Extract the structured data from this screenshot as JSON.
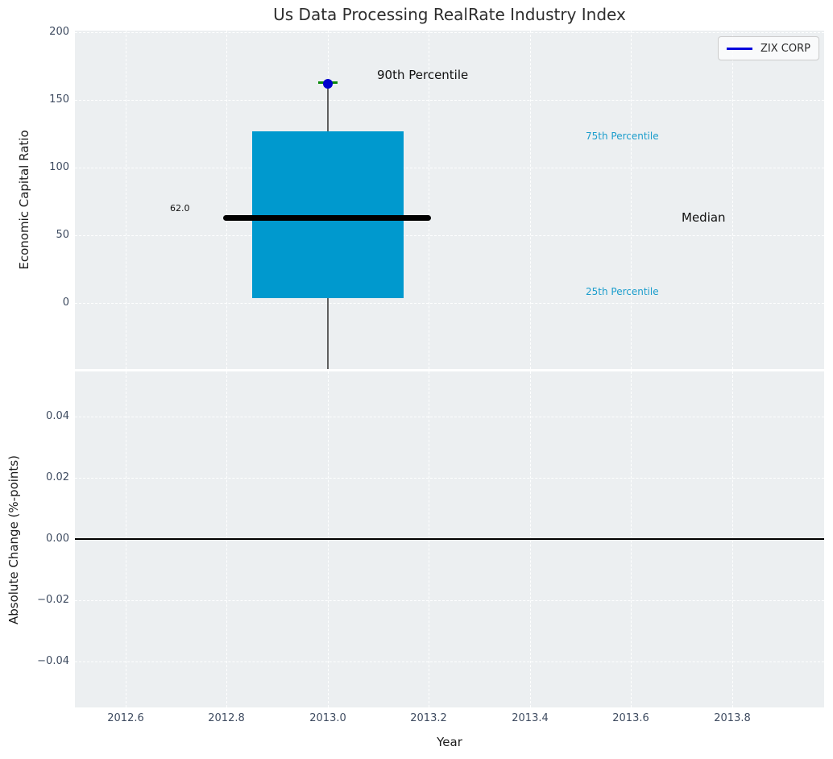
{
  "title": "Us Data Processing RealRate Industry Index",
  "legend": {
    "label": "ZIX CORP",
    "line_color": "#0000dd"
  },
  "top_axes": {
    "ylabel": "Economic Capital Ratio",
    "yticks": [
      "200",
      "150",
      "100",
      "50",
      "0"
    ],
    "annotations": {
      "p90_label": "90th Percentile",
      "p75_label": "75th Percentile",
      "median_label": "Median",
      "p25_label": "25th Percentile",
      "median_value_label": "62.0"
    }
  },
  "bottom_axes": {
    "ylabel": "Absolute Change (%-points)",
    "yticks": [
      "0.04",
      "0.02",
      "0.00",
      "−0.02",
      "−0.04"
    ]
  },
  "xaxis": {
    "label": "Year",
    "ticks": [
      "2012.6",
      "2012.8",
      "2013.0",
      "2013.2",
      "2013.4",
      "2013.6",
      "2013.8"
    ]
  },
  "colors": {
    "plot_background": "#eceff1",
    "grid": "#ffffff",
    "box_fill": "#0099ce",
    "median_line": "#000000",
    "whisker_line": "#5f5f5f",
    "whisker_cap": "#0a8a0a",
    "marker": "#0000cd",
    "percentile_text": "#1b9dcc",
    "tick_text": "#3e4b60",
    "zero_line": "#000000"
  },
  "chart_data": [
    {
      "type": "box",
      "title": "Us Data Processing RealRate Industry Index",
      "ylabel": "Economic Capital Ratio",
      "legend": [
        "ZIX CORP"
      ],
      "x_center": 2013.0,
      "box_x_range": [
        2012.85,
        2013.15
      ],
      "p25": 4,
      "median": 62.0,
      "p75": 126,
      "p90": 161,
      "whisker_low_clipped": true,
      "whisker_low_est": -49,
      "marker_point": {
        "x": 2013.0,
        "y": 161,
        "series": "ZIX CORP"
      },
      "median_data_label": "62.0",
      "ylim": [
        -50,
        200
      ],
      "yticks": [
        200,
        150,
        100,
        50,
        0
      ],
      "grid": true,
      "annotations": [
        "90th Percentile",
        "75th Percentile",
        "Median",
        "25th Percentile"
      ]
    },
    {
      "type": "line",
      "ylabel": "Absolute Change (%-points)",
      "xlabel": "Year",
      "series": [],
      "zero_reference_line": 0.0,
      "ylim": [
        -0.055,
        0.055
      ],
      "yticks": [
        0.04,
        0.02,
        0.0,
        -0.02,
        -0.04
      ],
      "xlim": [
        2012.5,
        2013.98
      ],
      "xticks": [
        2012.6,
        2012.8,
        2013.0,
        2013.2,
        2013.4,
        2013.6,
        2013.8
      ],
      "grid": true
    }
  ]
}
